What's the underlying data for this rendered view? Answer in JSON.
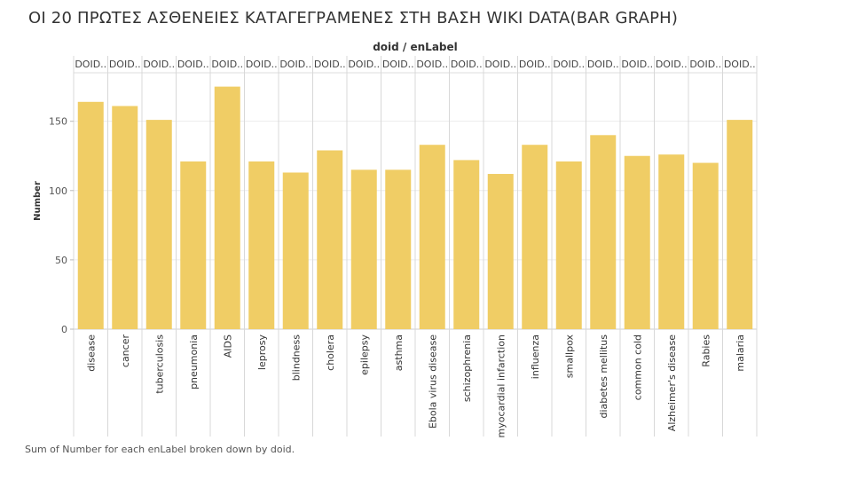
{
  "title": "ΟΙ 20 ΠΡΩΤΕΣ ΑΣΘΕΝΕΙΕΣ ΚΑΤΑΓΕΓΡΑΜΕΝΕΣ ΣΤΗ ΒΑΣΗ WIKI DATA(BAR GRAPH)",
  "caption": "Sum of Number for each enLabel broken down by doid.",
  "chart_data": {
    "type": "bar",
    "column_header": "doid / enLabel",
    "doid_label": "DOID..",
    "categories": [
      "disease",
      "cancer",
      "tuberculosis",
      "pneumonia",
      "AIDS",
      "leprosy",
      "blindness",
      "cholera",
      "epilepsy",
      "asthma",
      "Ebola virus disease",
      "schizophrenia",
      "myocardial infarction",
      "influenza",
      "smallpox",
      "diabetes mellitus",
      "common cold",
      "Alzheimer's disease",
      "Rabies",
      "malaria"
    ],
    "values": [
      164,
      161,
      151,
      121,
      175,
      121,
      113,
      129,
      115,
      115,
      133,
      122,
      112,
      133,
      121,
      140,
      125,
      126,
      120,
      151
    ],
    "ylabel": "Number",
    "ylim": [
      0,
      185
    ],
    "yticks": [
      0,
      50,
      100,
      150
    ],
    "bar_color": "#f0cd65",
    "grid": true
  }
}
